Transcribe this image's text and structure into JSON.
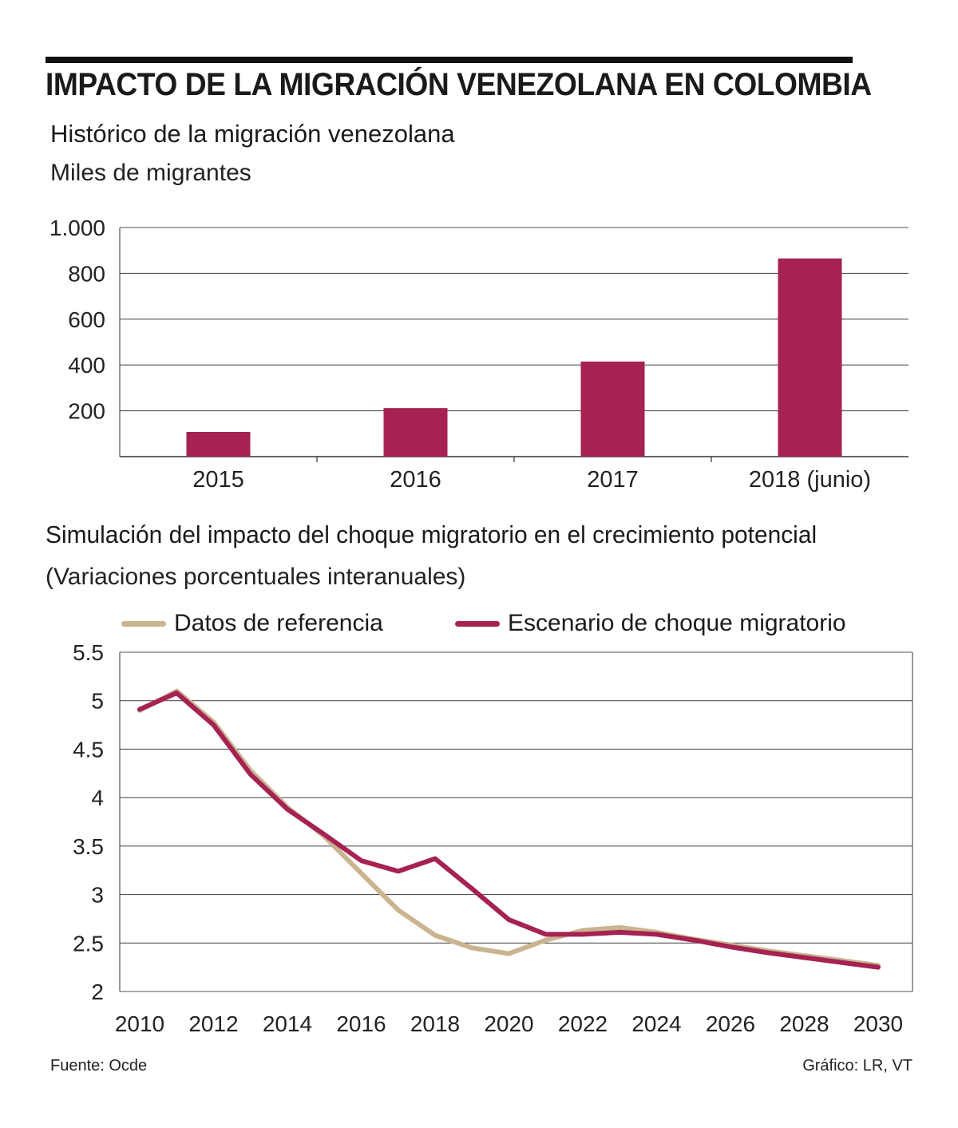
{
  "title": "IMPACTO DE LA MIGRACIÓN VENEZOLANA EN COLOMBIA",
  "chart_data": [
    {
      "type": "bar",
      "title": "Histórico de la migración venezolana",
      "subtitle": "Miles de migrantes",
      "categories": [
        "2015",
        "2016",
        "2017",
        "2018 (junio)"
      ],
      "values": [
        108,
        212,
        415,
        865
      ],
      "ylim": [
        0,
        1000
      ],
      "yticks": [
        200,
        400,
        600,
        800,
        1000
      ],
      "ytick_labels": [
        "200",
        "400",
        "600",
        "800",
        "1.000"
      ],
      "grid": true,
      "color": "#a52253"
    },
    {
      "type": "line",
      "title": "Simulación del impacto del choque migratorio en el crecimiento potencial",
      "subtitle": "(Variaciones porcentuales interanuales)",
      "x": [
        2010,
        2011,
        2012,
        2013,
        2014,
        2015,
        2016,
        2017,
        2018,
        2019,
        2020,
        2021,
        2022,
        2023,
        2024,
        2025,
        2026,
        2027,
        2028,
        2029,
        2030
      ],
      "series": [
        {
          "name": "Datos de referencia",
          "color": "#c9b48f",
          "values": [
            4.9,
            5.1,
            4.78,
            4.28,
            3.9,
            3.6,
            3.22,
            2.84,
            2.58,
            2.45,
            2.39,
            2.53,
            2.63,
            2.66,
            2.61,
            2.54,
            2.48,
            2.42,
            2.37,
            2.32,
            2.27
          ]
        },
        {
          "name": "Escenario de choque migratorio",
          "color": "#a52253",
          "values": [
            4.91,
            5.08,
            4.75,
            4.24,
            3.88,
            3.62,
            3.35,
            3.24,
            3.37,
            3.06,
            2.74,
            2.59,
            2.59,
            2.61,
            2.59,
            2.53,
            2.46,
            2.4,
            2.35,
            2.3,
            2.25
          ]
        }
      ],
      "xticks": [
        2010,
        2012,
        2014,
        2016,
        2018,
        2020,
        2022,
        2024,
        2026,
        2028,
        2030
      ],
      "yticks": [
        2,
        2.5,
        3,
        3.5,
        4,
        4.5,
        5,
        5.5
      ],
      "ytick_labels": [
        "2",
        "2.5",
        "3",
        "3.5",
        "4",
        "4.5",
        "5",
        "5.5"
      ],
      "xlim": [
        2010,
        2030
      ],
      "ylim": [
        2,
        5.5
      ],
      "grid": true,
      "legend": "top"
    }
  ],
  "footer": {
    "source": "Fuente: Ocde",
    "credit": "Gráfico: LR, VT"
  }
}
